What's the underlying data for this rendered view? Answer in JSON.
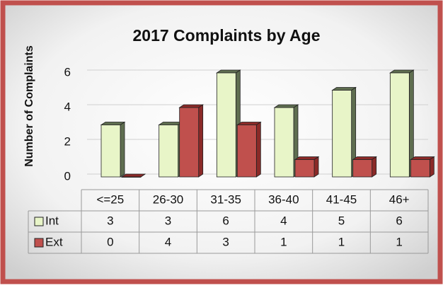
{
  "chart_data": {
    "type": "bar",
    "title": "2017 Complaints by Age",
    "y_label": "Number of Complaints",
    "categories": [
      "<=25",
      "26-30",
      "31-35",
      "36-40",
      "41-45",
      "46+"
    ],
    "series": [
      {
        "name": "Int",
        "color": "#e8f5c8",
        "values": [
          3,
          3,
          6,
          4,
          5,
          6
        ]
      },
      {
        "name": "Ext",
        "color": "#c0504d",
        "values": [
          0,
          4,
          3,
          1,
          1,
          1
        ]
      }
    ],
    "ylim": [
      0,
      6
    ],
    "yticks": [
      0,
      2,
      4,
      6
    ],
    "grid": true
  }
}
